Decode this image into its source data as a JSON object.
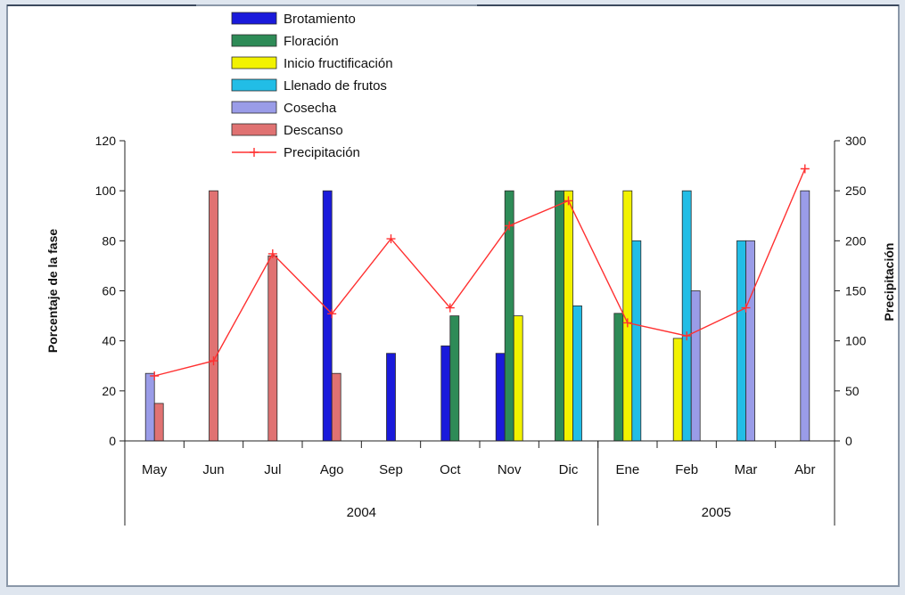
{
  "chart_data": {
    "type": "bar",
    "categories": [
      "May",
      "Jun",
      "Jul",
      "Ago",
      "Sep",
      "Oct",
      "Nov",
      "Dic",
      "Ene",
      "Feb",
      "Mar",
      "Abr"
    ],
    "groups": [
      {
        "label": "2004",
        "categories": [
          "May",
          "Jun",
          "Jul",
          "Ago",
          "Sep",
          "Oct",
          "Nov",
          "Dic"
        ]
      },
      {
        "label": "2005",
        "categories": [
          "Ene",
          "Feb",
          "Mar",
          "Abr"
        ]
      }
    ],
    "series": [
      {
        "name": "Brotamiento",
        "color": "#1a1adb",
        "values": [
          0,
          0,
          0,
          100,
          35,
          38,
          35,
          0,
          0,
          0,
          0,
          0
        ]
      },
      {
        "name": "Floración",
        "color": "#2e8b57",
        "values": [
          0,
          0,
          0,
          0,
          0,
          50,
          100,
          100,
          51,
          0,
          0,
          0
        ]
      },
      {
        "name": "Inicio fructificación",
        "color": "#f2f200",
        "values": [
          0,
          0,
          0,
          0,
          0,
          0,
          50,
          100,
          100,
          41,
          0,
          0
        ]
      },
      {
        "name": "Llenado de frutos",
        "color": "#22bde6",
        "values": [
          0,
          0,
          0,
          0,
          0,
          0,
          0,
          54,
          80,
          100,
          80,
          0
        ]
      },
      {
        "name": "Cosecha",
        "color": "#9a9ce8",
        "values": [
          27,
          0,
          0,
          0,
          0,
          0,
          0,
          0,
          0,
          60,
          80,
          100
        ]
      },
      {
        "name": "Descanso",
        "color": "#e07272",
        "values": [
          15,
          100,
          74,
          27,
          0,
          0,
          0,
          0,
          0,
          0,
          0,
          0
        ]
      }
    ],
    "line_series": {
      "name": "Precipitación",
      "color": "#ff3030",
      "axis": "right",
      "values": [
        65,
        80,
        187,
        127,
        202,
        133,
        215,
        240,
        118,
        105,
        133,
        272
      ]
    },
    "y_left": {
      "label": "Porcentaje de la fase",
      "min": 0,
      "max": 120,
      "ticks": [
        "0",
        "20",
        "40",
        "60",
        "80",
        "100",
        "120"
      ]
    },
    "y_right": {
      "label": "Precipitación",
      "min": 0,
      "max": 300,
      "ticks": [
        "0",
        "50",
        "100",
        "150",
        "200",
        "250",
        "300"
      ]
    },
    "legend_position": "top-left",
    "grid": false
  }
}
